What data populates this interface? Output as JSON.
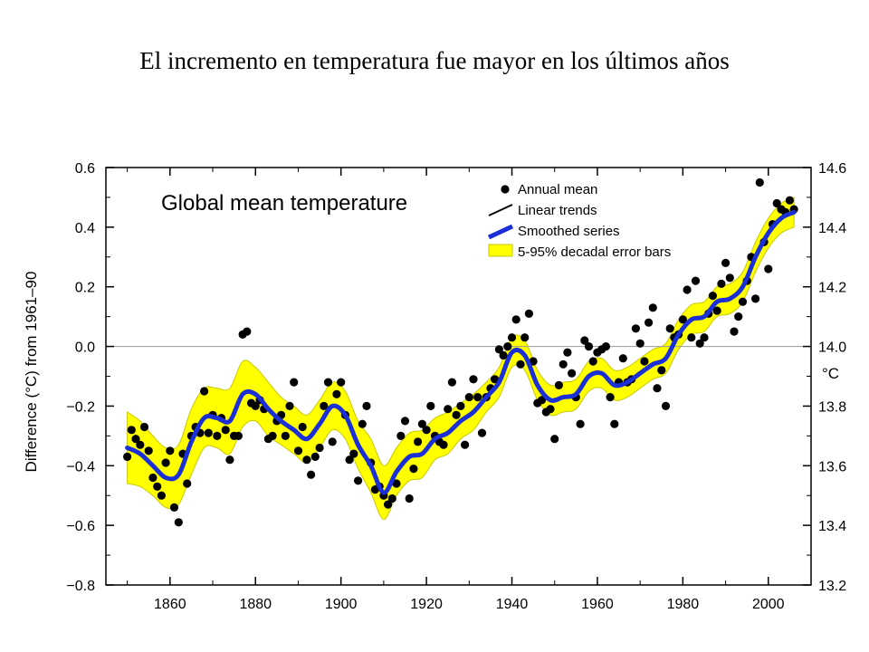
{
  "slide": {
    "title": "El incremento en temperatura fue mayor en los últimos años"
  },
  "chart_data": {
    "type": "scatter",
    "title": "Global mean temperature",
    "xlabel": "",
    "ylabel": "Difference (°C) from 1961–90",
    "y2label": "°C",
    "xlim": [
      1845,
      2010
    ],
    "ylim": [
      -0.8,
      0.6
    ],
    "y2lim": [
      13.2,
      14.6
    ],
    "x_ticks": [
      1860,
      1880,
      1900,
      1920,
      1940,
      1960,
      1980,
      2000
    ],
    "y_ticks": [
      0.6,
      0.4,
      0.2,
      0.0,
      -0.2,
      -0.4,
      -0.6,
      -0.8
    ],
    "y_tick_labels": [
      "0.6",
      "0.4",
      "0.2",
      "0.0",
      "−0.2",
      "−0.4",
      "−0.6",
      "−0.8"
    ],
    "y2_ticks": [
      14.6,
      14.4,
      14.2,
      14.0,
      13.8,
      13.6,
      13.4,
      13.2
    ],
    "y2_tick_labels": [
      "14.6",
      "14.4",
      "14.2",
      "14.0",
      "13.8",
      "13.6",
      "13.4",
      "13.2"
    ],
    "legend": {
      "position": "top-right",
      "entries": [
        {
          "label": "Annual mean",
          "marker": "dot",
          "color": "#000000"
        },
        {
          "label": "Linear trends",
          "marker": "line",
          "color": "#000000"
        },
        {
          "label": "Smoothed series",
          "marker": "line",
          "color": "#1a2fd6"
        },
        {
          "label": "5-95% decadal error bars",
          "marker": "box",
          "color": "#ffff00"
        }
      ]
    },
    "colors": {
      "band": "#ffff00",
      "band_edge": "#c8c800",
      "smooth": "#1a2fd6",
      "points": "#000000",
      "zero_line": "#9a9a9a"
    },
    "annual_mean": {
      "years": [
        1850,
        1851,
        1852,
        1853,
        1854,
        1855,
        1856,
        1857,
        1858,
        1859,
        1860,
        1861,
        1862,
        1863,
        1864,
        1865,
        1866,
        1867,
        1868,
        1869,
        1870,
        1871,
        1872,
        1873,
        1874,
        1875,
        1876,
        1877,
        1878,
        1879,
        1880,
        1881,
        1882,
        1883,
        1884,
        1885,
        1886,
        1887,
        1888,
        1889,
        1890,
        1891,
        1892,
        1893,
        1894,
        1895,
        1896,
        1897,
        1898,
        1899,
        1900,
        1901,
        1902,
        1903,
        1904,
        1905,
        1906,
        1907,
        1908,
        1909,
        1910,
        1911,
        1912,
        1913,
        1914,
        1915,
        1916,
        1917,
        1918,
        1919,
        1920,
        1921,
        1922,
        1923,
        1924,
        1925,
        1926,
        1927,
        1928,
        1929,
        1930,
        1931,
        1932,
        1933,
        1934,
        1935,
        1936,
        1937,
        1938,
        1939,
        1940,
        1941,
        1942,
        1943,
        1944,
        1945,
        1946,
        1947,
        1948,
        1949,
        1950,
        1951,
        1952,
        1953,
        1954,
        1955,
        1956,
        1957,
        1958,
        1959,
        1960,
        1961,
        1962,
        1963,
        1964,
        1965,
        1966,
        1967,
        1968,
        1969,
        1970,
        1971,
        1972,
        1973,
        1974,
        1975,
        1976,
        1977,
        1978,
        1979,
        1980,
        1981,
        1982,
        1983,
        1984,
        1985,
        1986,
        1987,
        1988,
        1989,
        1990,
        1991,
        1992,
        1993,
        1994,
        1995,
        1996,
        1997,
        1998,
        1999,
        2000,
        2001,
        2002,
        2003,
        2004,
        2005,
        2006
      ],
      "values": [
        -0.37,
        -0.28,
        -0.31,
        -0.33,
        -0.27,
        -0.35,
        -0.44,
        -0.47,
        -0.5,
        -0.39,
        -0.35,
        -0.54,
        -0.59,
        -0.36,
        -0.46,
        -0.3,
        -0.27,
        -0.29,
        -0.15,
        -0.29,
        -0.23,
        -0.3,
        -0.24,
        -0.28,
        -0.38,
        -0.3,
        -0.3,
        0.04,
        0.05,
        -0.19,
        -0.2,
        -0.18,
        -0.21,
        -0.31,
        -0.3,
        -0.25,
        -0.23,
        -0.3,
        -0.2,
        -0.12,
        -0.35,
        -0.27,
        -0.38,
        -0.43,
        -0.37,
        -0.34,
        -0.2,
        -0.12,
        -0.32,
        -0.16,
        -0.12,
        -0.23,
        -0.38,
        -0.36,
        -0.45,
        -0.26,
        -0.2,
        -0.39,
        -0.48,
        -0.47,
        -0.5,
        -0.53,
        -0.51,
        -0.46,
        -0.3,
        -0.25,
        -0.51,
        -0.41,
        -0.32,
        -0.26,
        -0.28,
        -0.2,
        -0.3,
        -0.32,
        -0.33,
        -0.21,
        -0.12,
        -0.23,
        -0.2,
        -0.33,
        -0.17,
        -0.11,
        -0.17,
        -0.29,
        -0.17,
        -0.14,
        -0.11,
        -0.01,
        -0.03,
        0.0,
        0.03,
        0.09,
        -0.06,
        0.03,
        0.11,
        -0.05,
        -0.19,
        -0.18,
        -0.22,
        -0.21,
        -0.31,
        -0.13,
        -0.06,
        -0.02,
        -0.09,
        -0.17,
        -0.26,
        0.02,
        0.0,
        -0.05,
        -0.02,
        -0.01,
        0.0,
        -0.17,
        -0.26,
        -0.12,
        -0.04,
        -0.12,
        -0.11,
        0.06,
        0.01,
        -0.05,
        0.08,
        0.13,
        -0.14,
        -0.08,
        -0.2,
        0.06,
        0.03,
        0.04,
        0.09,
        0.19,
        0.03,
        0.22,
        0.01,
        0.03,
        0.11,
        0.17,
        0.12,
        0.21,
        0.28,
        0.23,
        0.05,
        0.1,
        0.15,
        0.22,
        0.3,
        0.16,
        0.55,
        0.35,
        0.26,
        0.41,
        0.48,
        0.46,
        0.45,
        0.49,
        0.46
      ]
    },
    "smoothed_series": {
      "years": [
        1850,
        1853,
        1856,
        1859,
        1862,
        1865,
        1868,
        1871,
        1874,
        1877,
        1880,
        1883,
        1886,
        1889,
        1892,
        1895,
        1898,
        1901,
        1904,
        1907,
        1910,
        1913,
        1916,
        1919,
        1922,
        1925,
        1928,
        1931,
        1934,
        1937,
        1940,
        1943,
        1946,
        1949,
        1952,
        1955,
        1958,
        1961,
        1964,
        1967,
        1970,
        1973,
        1976,
        1979,
        1982,
        1985,
        1988,
        1991,
        1994,
        1997,
        2000,
        2003,
        2006
      ],
      "values": [
        -0.34,
        -0.36,
        -0.4,
        -0.44,
        -0.43,
        -0.32,
        -0.24,
        -0.24,
        -0.25,
        -0.16,
        -0.16,
        -0.21,
        -0.25,
        -0.28,
        -0.31,
        -0.26,
        -0.2,
        -0.23,
        -0.33,
        -0.4,
        -0.49,
        -0.42,
        -0.37,
        -0.36,
        -0.31,
        -0.29,
        -0.25,
        -0.22,
        -0.17,
        -0.12,
        -0.02,
        -0.03,
        -0.13,
        -0.18,
        -0.17,
        -0.16,
        -0.1,
        -0.09,
        -0.13,
        -0.12,
        -0.09,
        -0.06,
        -0.04,
        0.04,
        0.09,
        0.1,
        0.15,
        0.16,
        0.2,
        0.3,
        0.38,
        0.43,
        0.45
      ]
    },
    "error_band": {
      "years": [
        1850,
        1853,
        1856,
        1859,
        1862,
        1865,
        1868,
        1871,
        1874,
        1877,
        1880,
        1883,
        1886,
        1889,
        1892,
        1895,
        1898,
        1901,
        1904,
        1907,
        1910,
        1913,
        1916,
        1919,
        1922,
        1925,
        1928,
        1931,
        1934,
        1937,
        1940,
        1943,
        1946,
        1949,
        1952,
        1955,
        1958,
        1961,
        1964,
        1967,
        1970,
        1973,
        1976,
        1979,
        1982,
        1985,
        1988,
        1991,
        1994,
        1997,
        2000,
        2003,
        2006
      ],
      "upper": [
        -0.22,
        -0.25,
        -0.3,
        -0.34,
        -0.33,
        -0.21,
        -0.14,
        -0.14,
        -0.14,
        -0.05,
        -0.07,
        -0.12,
        -0.17,
        -0.2,
        -0.23,
        -0.18,
        -0.12,
        -0.15,
        -0.25,
        -0.31,
        -0.4,
        -0.34,
        -0.29,
        -0.28,
        -0.24,
        -0.22,
        -0.19,
        -0.16,
        -0.12,
        -0.07,
        0.03,
        0.02,
        -0.08,
        -0.13,
        -0.12,
        -0.11,
        -0.05,
        -0.04,
        -0.08,
        -0.07,
        -0.04,
        -0.01,
        0.01,
        0.09,
        0.14,
        0.15,
        0.2,
        0.21,
        0.25,
        0.35,
        0.43,
        0.48,
        0.5
      ],
      "lower": [
        -0.46,
        -0.47,
        -0.5,
        -0.54,
        -0.53,
        -0.43,
        -0.34,
        -0.34,
        -0.36,
        -0.27,
        -0.25,
        -0.3,
        -0.33,
        -0.36,
        -0.39,
        -0.34,
        -0.28,
        -0.31,
        -0.41,
        -0.49,
        -0.58,
        -0.5,
        -0.45,
        -0.44,
        -0.38,
        -0.36,
        -0.31,
        -0.28,
        -0.22,
        -0.17,
        -0.07,
        -0.08,
        -0.18,
        -0.23,
        -0.22,
        -0.21,
        -0.15,
        -0.14,
        -0.18,
        -0.17,
        -0.14,
        -0.11,
        -0.09,
        -0.01,
        0.04,
        0.05,
        0.1,
        0.11,
        0.15,
        0.25,
        0.33,
        0.38,
        0.4
      ]
    }
  }
}
